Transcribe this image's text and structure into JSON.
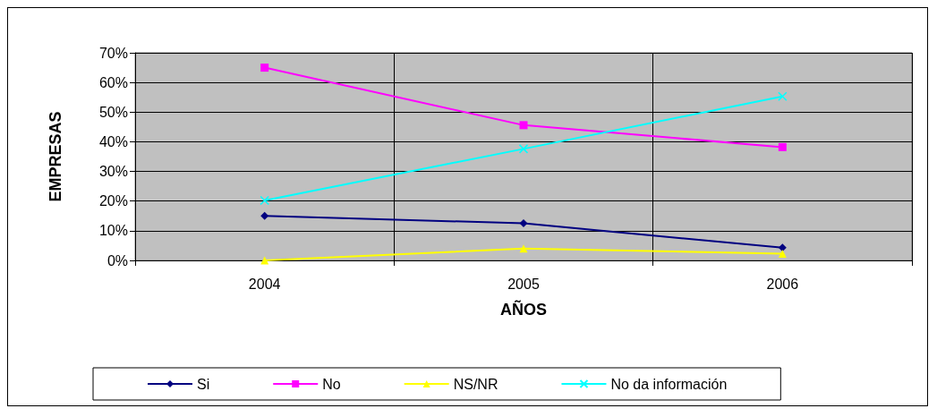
{
  "chart_data": {
    "type": "line",
    "xlabel": "AÑOS",
    "ylabel": "EMPRESAS",
    "categories": [
      "2004",
      "2005",
      "2006"
    ],
    "series": [
      {
        "name": "Si",
        "color": "#000080",
        "marker": "diamond",
        "values": [
          15,
          12.5,
          4.3
        ]
      },
      {
        "name": "No",
        "color": "#ff00ff",
        "marker": "square",
        "values": [
          65,
          45.6,
          38.2
        ]
      },
      {
        "name": "NS/NR",
        "color": "#ffff00",
        "marker": "triangle",
        "values": [
          0,
          4,
          2.3
        ]
      },
      {
        "name": "No da información",
        "color": "#00ffff",
        "marker": "cross",
        "values": [
          20.2,
          37.6,
          55.3
        ]
      }
    ],
    "ylim": [
      0,
      70
    ],
    "yticks": [
      {
        "value": 0,
        "label": "0%"
      },
      {
        "value": 10,
        "label": "10%"
      },
      {
        "value": 20,
        "label": "20%"
      },
      {
        "value": 30,
        "label": "30%"
      },
      {
        "value": 40,
        "label": "40%"
      },
      {
        "value": 50,
        "label": "50%"
      },
      {
        "value": 60,
        "label": "60%"
      },
      {
        "value": 70,
        "label": "70%"
      }
    ],
    "grid": true,
    "legend": "bottom"
  }
}
